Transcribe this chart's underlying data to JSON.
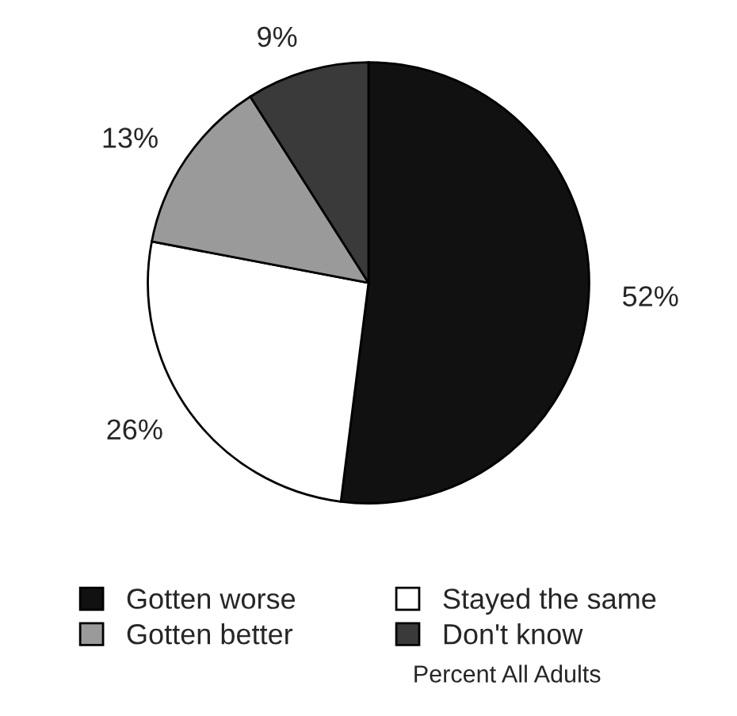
{
  "chart_data": {
    "type": "pie",
    "categories": [
      "Gotten worse",
      "Stayed the same",
      "Gotten better",
      "Don't know"
    ],
    "values": [
      52,
      26,
      13,
      9
    ],
    "value_labels": [
      "52%",
      "26%",
      "13%",
      "9%"
    ],
    "colors": [
      "#111111",
      "#ffffff",
      "#9a9a9a",
      "#3a3a3a"
    ],
    "legend": "bottom",
    "annotations": [
      "Percent All Adults"
    ]
  }
}
